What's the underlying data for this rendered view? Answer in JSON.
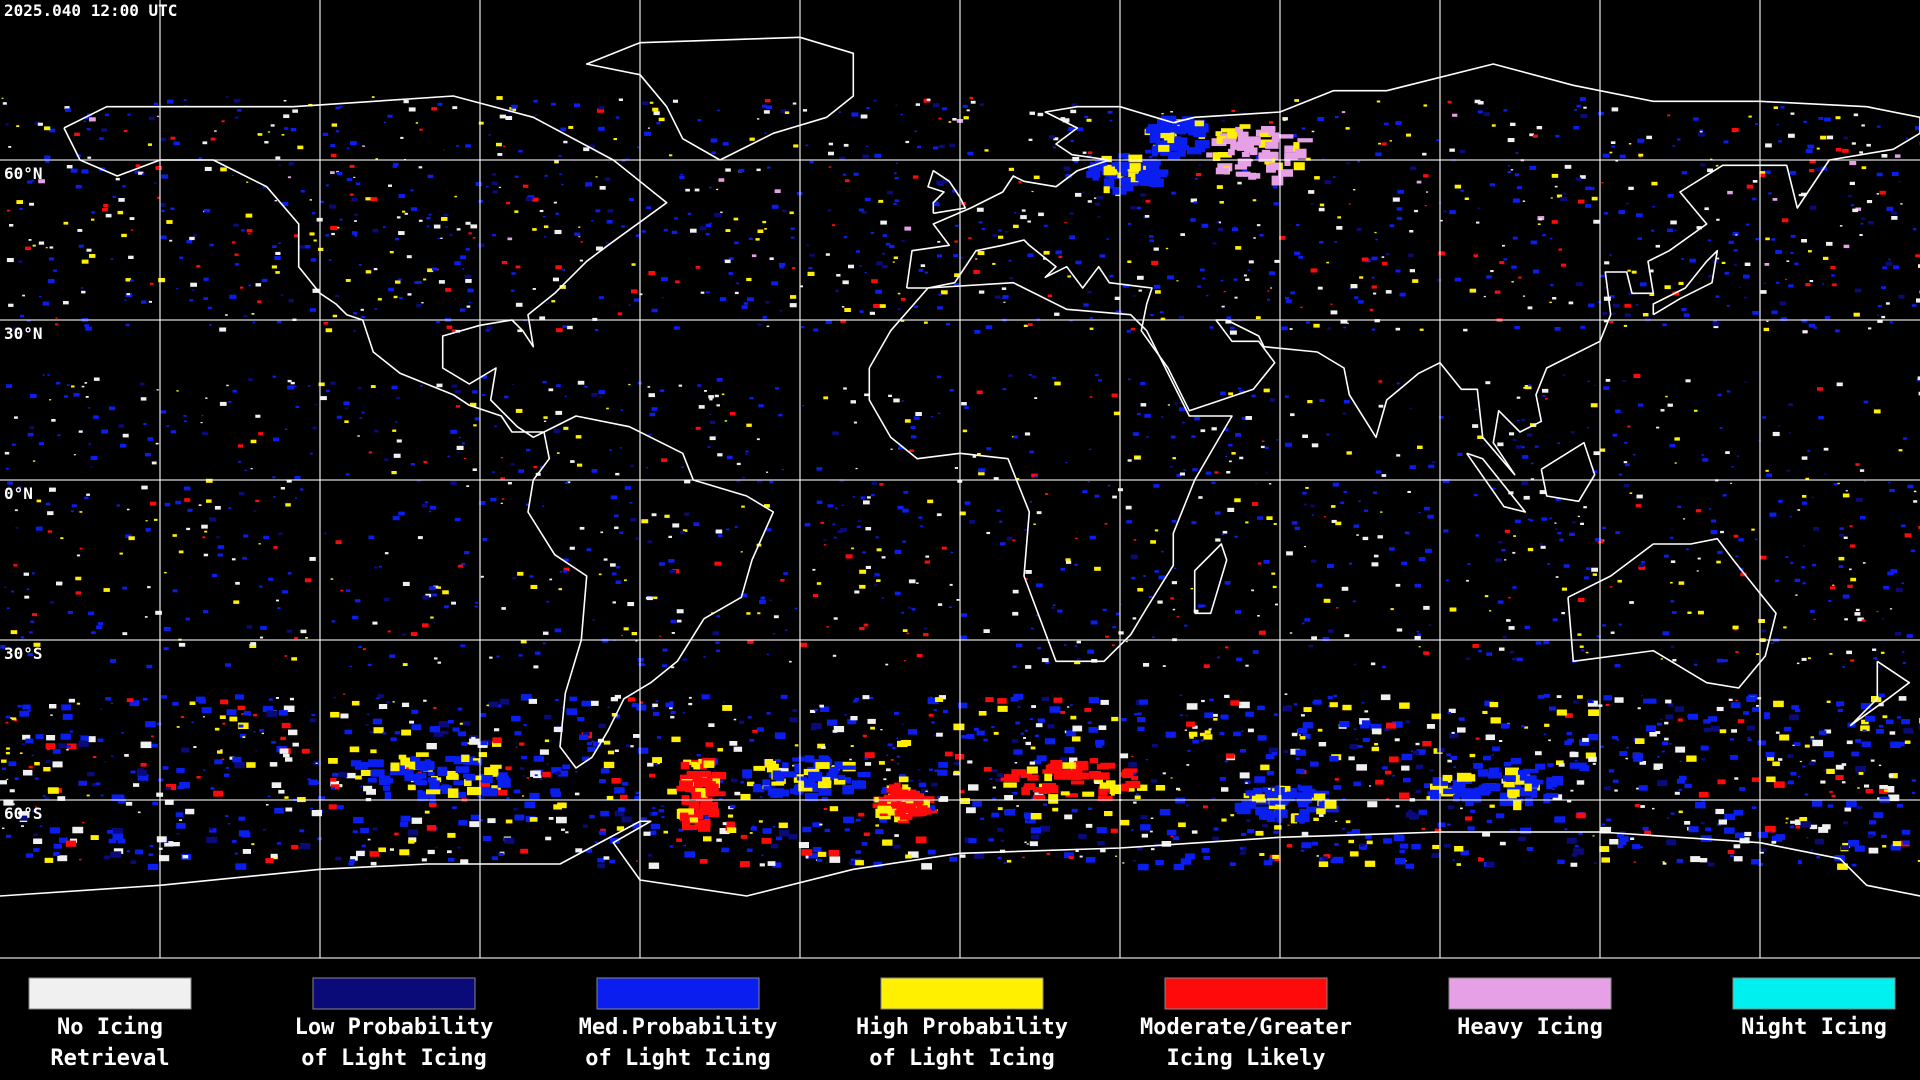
{
  "header": {
    "timestamp": "2025.040 12:00 UTC"
  },
  "latitude_labels": [
    "60°N",
    "30°N",
    "0°N",
    "30°S",
    "60°S"
  ],
  "legend": [
    {
      "lines": [
        "No Icing",
        "Retrieval"
      ],
      "color": "#f0f0f0"
    },
    {
      "lines": [
        "Low Probability",
        "of Light Icing"
      ],
      "color": "#0a0a78"
    },
    {
      "lines": [
        "Med.Probability",
        "of Light Icing"
      ],
      "color": "#0a1ef0"
    },
    {
      "lines": [
        "High Probability",
        "of Light Icing"
      ],
      "color": "#fff000"
    },
    {
      "lines": [
        "Moderate/Greater",
        "Icing Likely"
      ],
      "color": "#ff0a0a"
    },
    {
      "lines": [
        "Heavy Icing"
      ],
      "color": "#e6a0e6"
    },
    {
      "lines": [
        "Night Icing"
      ],
      "color": "#00f0f0"
    }
  ]
}
